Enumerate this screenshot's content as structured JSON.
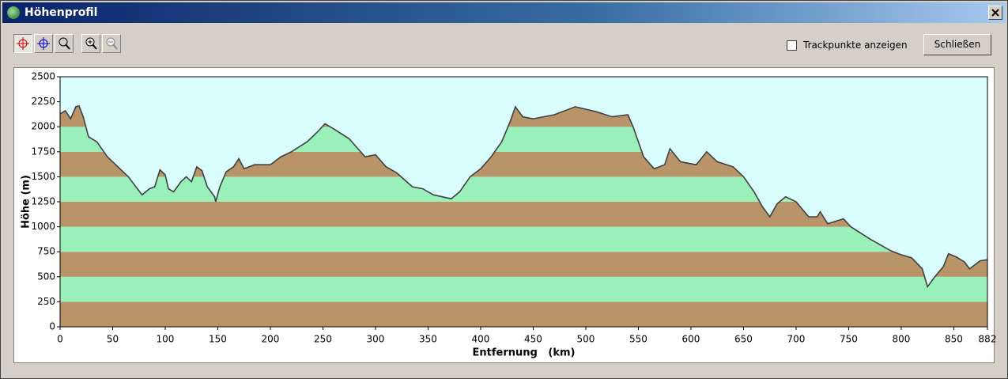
{
  "window_title": "Höhenprofil",
  "checkbox_label": "Trackpunkte anzeigen",
  "button_label": "Schließen",
  "chart_data": {
    "type": "area",
    "xlabel": "Entfernung   (km)",
    "ylabel": "Höhe (m)",
    "x": [
      0,
      5,
      10,
      15,
      18,
      22,
      27,
      35,
      45,
      55,
      65,
      72,
      78,
      85,
      90,
      95,
      100,
      103,
      108,
      115,
      120,
      125,
      130,
      135,
      140,
      147,
      148,
      152,
      158,
      165,
      170,
      175,
      185,
      200,
      210,
      220,
      235,
      245,
      252,
      260,
      275,
      290,
      300,
      310,
      320,
      335,
      345,
      355,
      372,
      380,
      390,
      400,
      410,
      420,
      428,
      433,
      440,
      450,
      470,
      490,
      510,
      525,
      540,
      545,
      555,
      565,
      575,
      580,
      590,
      605,
      615,
      625,
      640,
      650,
      660,
      668,
      675,
      682,
      690,
      700,
      712,
      720,
      723,
      730,
      745,
      752,
      770,
      790,
      800,
      810,
      820,
      825,
      832,
      840,
      845,
      852,
      860,
      865,
      875,
      882
    ],
    "values": [
      2130,
      2160,
      2080,
      2200,
      2210,
      2100,
      1900,
      1850,
      1700,
      1600,
      1500,
      1400,
      1320,
      1380,
      1400,
      1570,
      1520,
      1380,
      1350,
      1450,
      1500,
      1450,
      1600,
      1560,
      1400,
      1300,
      1250,
      1400,
      1550,
      1600,
      1680,
      1580,
      1620,
      1620,
      1700,
      1750,
      1850,
      1950,
      2030,
      1980,
      1880,
      1700,
      1720,
      1600,
      1540,
      1400,
      1380,
      1320,
      1280,
      1350,
      1500,
      1580,
      1700,
      1850,
      2050,
      2200,
      2100,
      2080,
      2120,
      2200,
      2150,
      2100,
      2120,
      2000,
      1700,
      1580,
      1620,
      1780,
      1650,
      1620,
      1750,
      1650,
      1600,
      1500,
      1350,
      1200,
      1100,
      1230,
      1300,
      1250,
      1100,
      1100,
      1150,
      1030,
      1080,
      1000,
      880,
      760,
      720,
      690,
      580,
      400,
      500,
      600,
      730,
      700,
      650,
      580,
      660,
      670
    ],
    "color": "#404040",
    "band_colors": [
      "#b99468",
      "#9af0b9"
    ],
    "background": "#d9fdfd",
    "xlim": [
      0,
      882
    ],
    "xticks": [
      0,
      50,
      100,
      150,
      200,
      250,
      300,
      350,
      400,
      450,
      500,
      550,
      600,
      650,
      700,
      750,
      800,
      850,
      882
    ],
    "ylim": [
      0,
      2500
    ],
    "yticks": [
      0,
      250,
      500,
      750,
      1000,
      1250,
      1500,
      1750,
      2000,
      2250,
      2500
    ]
  }
}
